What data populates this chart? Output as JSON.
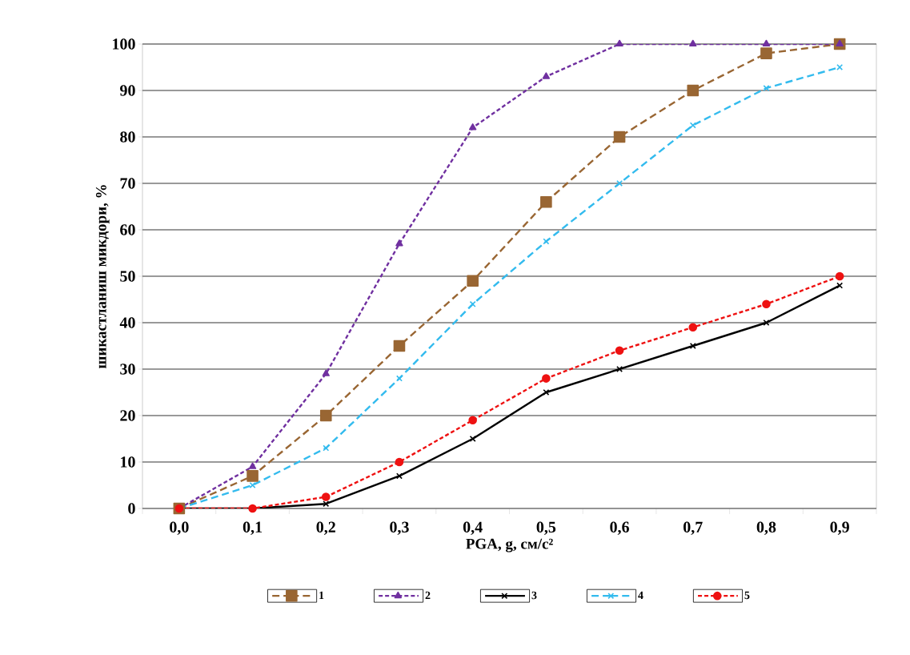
{
  "chart_data": {
    "type": "line",
    "xlabel": "PGA, g, см/с²",
    "ylabel": "шикастланиш микдори, %",
    "categories": [
      "0,0",
      "0,1",
      "0,2",
      "0,3",
      "0,4",
      "0,5",
      "0,6",
      "0,7",
      "0,8",
      "0,9"
    ],
    "ylim": [
      0,
      100
    ],
    "yticks": [
      0,
      10,
      20,
      30,
      40,
      50,
      60,
      70,
      80,
      90,
      100
    ],
    "grid": "y",
    "legend": "bottom",
    "series": [
      {
        "name": "1",
        "color": "#996633",
        "marker": "square",
        "line_style": "dashed",
        "values": [
          0,
          7,
          20,
          35,
          49,
          66,
          80,
          90,
          98,
          100
        ]
      },
      {
        "name": "2",
        "color": "#7030a0",
        "marker": "triangle",
        "line_style": "dotted",
        "values": [
          0,
          9,
          29,
          57,
          82,
          93,
          100,
          100,
          100,
          100
        ]
      },
      {
        "name": "3",
        "color": "#000000",
        "marker": "cross",
        "line_style": "solid",
        "values": [
          0,
          0,
          1,
          7,
          15,
          25,
          30,
          35,
          40,
          48
        ]
      },
      {
        "name": "4",
        "color": "#33bbee",
        "marker": "cross",
        "line_style": "dashed",
        "values": [
          0,
          5,
          13,
          28,
          44,
          57.5,
          70,
          82.5,
          90.5,
          95
        ]
      },
      {
        "name": "5",
        "color": "#ee1111",
        "marker": "circle",
        "line_style": "dotted",
        "values": [
          0,
          0,
          2.5,
          10,
          19,
          28,
          34,
          39,
          44,
          50
        ]
      }
    ]
  }
}
